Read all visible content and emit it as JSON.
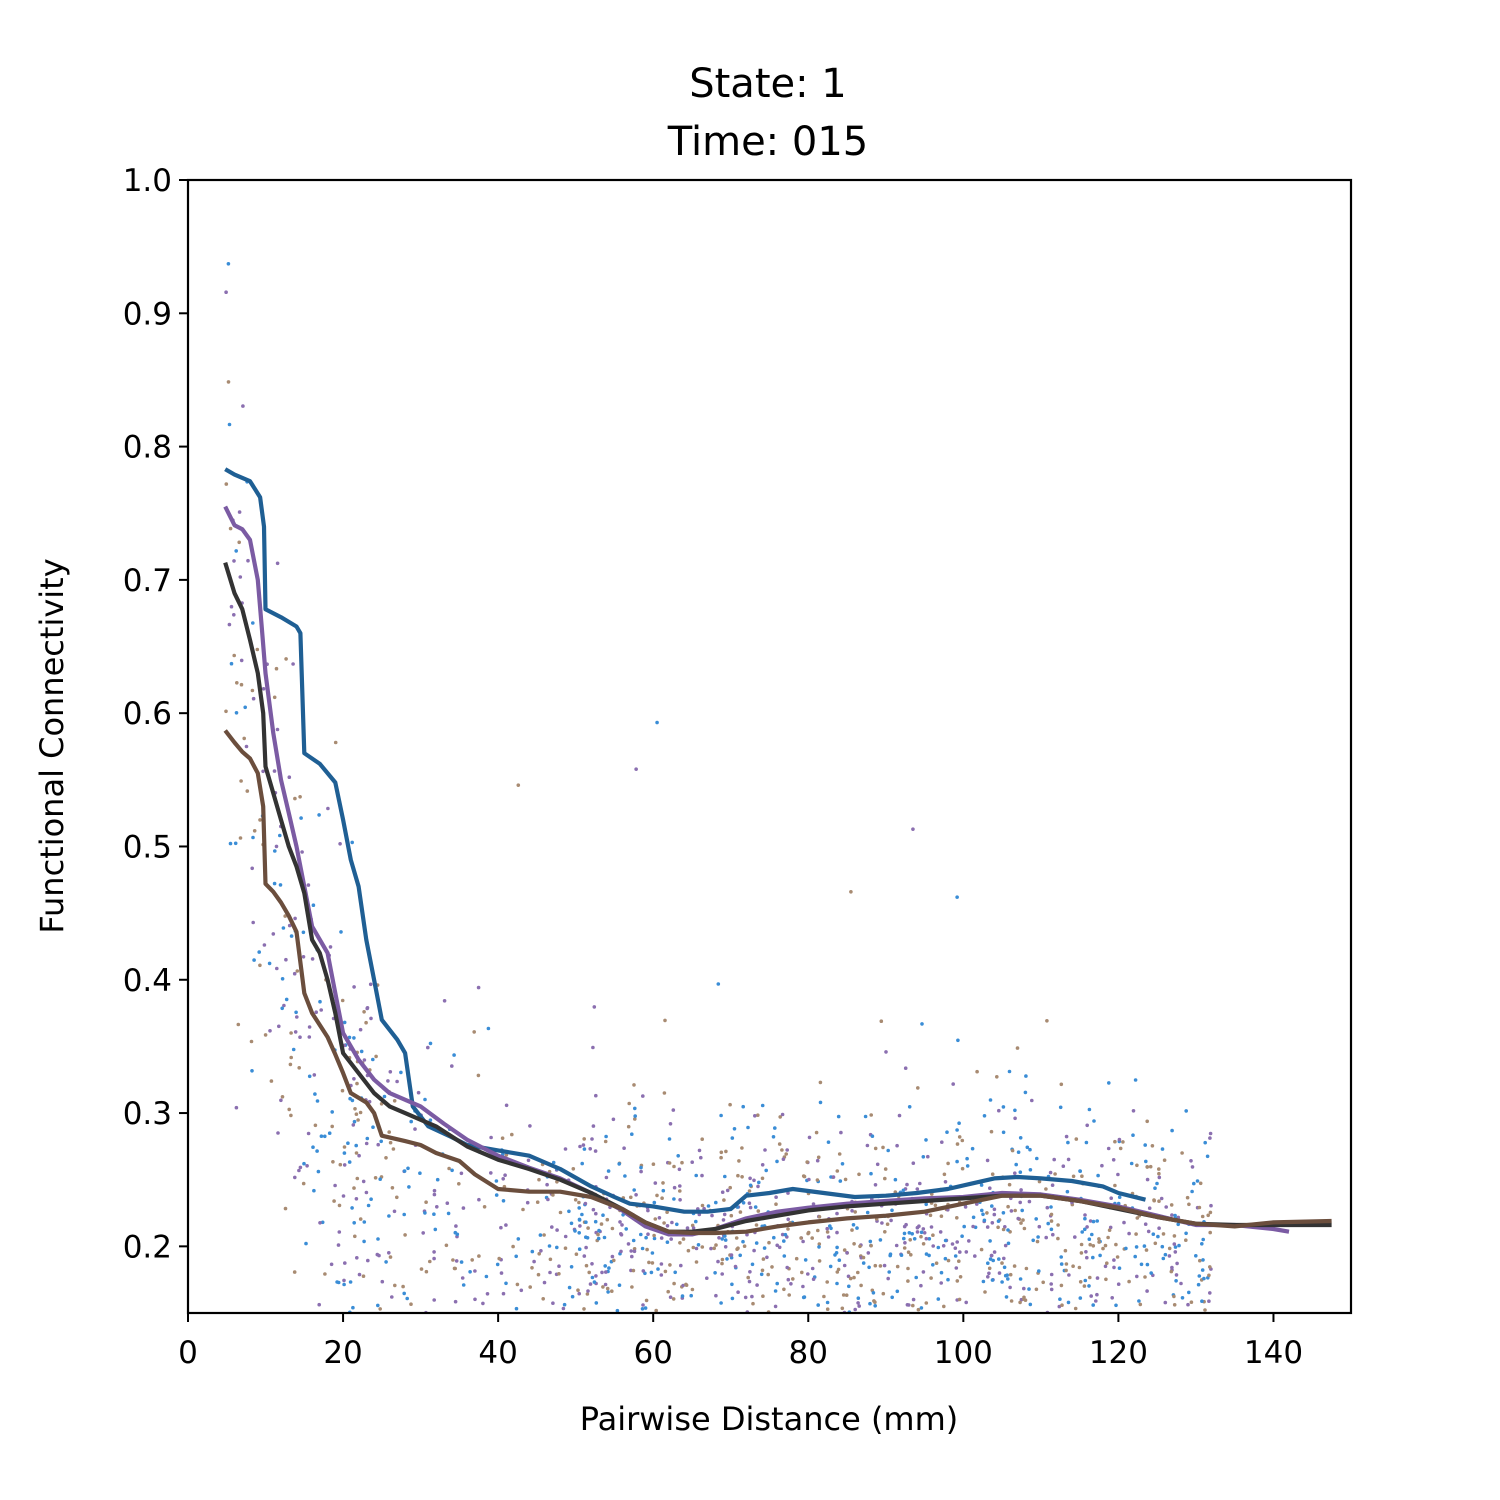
{
  "chart_data": {
    "type": "scatter",
    "title_lines": [
      "State: 1",
      "Time: 015"
    ],
    "xlabel": "Pairwise Distance (mm)",
    "ylabel": "Functional Connectivity",
    "xlim": [
      0,
      150
    ],
    "ylim": [
      0.15,
      1.0
    ],
    "xticks": [
      0,
      20,
      40,
      60,
      80,
      100,
      120,
      140
    ],
    "yticks": [
      0.2,
      0.3,
      0.4,
      0.5,
      0.6,
      0.7,
      0.8,
      0.9,
      1.0
    ],
    "grid": false,
    "legend": "none",
    "scatter_colors": [
      "#3a8dd6",
      "#a88b72",
      "#8b6fb0"
    ],
    "scatter_note_seed": 15,
    "series": [
      {
        "color": "#1f5f94",
        "points": [
          [
            4.8,
            0.783
          ],
          [
            6,
            0.779
          ],
          [
            8,
            0.774
          ],
          [
            9.3,
            0.762
          ],
          [
            9.8,
            0.74
          ],
          [
            10,
            0.678
          ],
          [
            12,
            0.672
          ],
          [
            14,
            0.665
          ],
          [
            14.5,
            0.66
          ],
          [
            15,
            0.57
          ],
          [
            17,
            0.562
          ],
          [
            19,
            0.548
          ],
          [
            20,
            0.52
          ],
          [
            21,
            0.49
          ],
          [
            22,
            0.47
          ],
          [
            23,
            0.43
          ],
          [
            24,
            0.4
          ],
          [
            25,
            0.37
          ],
          [
            27,
            0.355
          ],
          [
            28,
            0.345
          ],
          [
            29,
            0.305
          ],
          [
            31,
            0.29
          ],
          [
            34,
            0.282
          ],
          [
            36,
            0.276
          ],
          [
            40,
            0.272
          ],
          [
            44,
            0.268
          ],
          [
            48,
            0.258
          ],
          [
            52,
            0.245
          ],
          [
            55,
            0.237
          ],
          [
            57,
            0.232
          ],
          [
            60,
            0.23
          ],
          [
            64,
            0.226
          ],
          [
            67,
            0.226
          ],
          [
            70,
            0.228
          ],
          [
            72,
            0.238
          ],
          [
            75,
            0.24
          ],
          [
            78,
            0.243
          ],
          [
            82,
            0.24
          ],
          [
            86,
            0.237
          ],
          [
            90,
            0.238
          ],
          [
            94,
            0.24
          ],
          [
            98,
            0.243
          ],
          [
            101,
            0.247
          ],
          [
            104,
            0.251
          ],
          [
            107,
            0.252
          ],
          [
            110,
            0.251
          ],
          [
            114,
            0.249
          ],
          [
            118,
            0.245
          ],
          [
            120,
            0.24
          ],
          [
            123.5,
            0.235
          ]
        ]
      },
      {
        "color": "#7b5ba3",
        "points": [
          [
            4.8,
            0.755
          ],
          [
            6,
            0.741
          ],
          [
            7,
            0.738
          ],
          [
            8,
            0.73
          ],
          [
            9,
            0.7
          ],
          [
            9.5,
            0.665
          ],
          [
            10,
            0.63
          ],
          [
            11,
            0.585
          ],
          [
            12,
            0.55
          ],
          [
            13,
            0.525
          ],
          [
            14,
            0.5
          ],
          [
            15,
            0.47
          ],
          [
            16,
            0.44
          ],
          [
            18,
            0.42
          ],
          [
            19,
            0.39
          ],
          [
            20,
            0.36
          ],
          [
            22,
            0.34
          ],
          [
            24,
            0.325
          ],
          [
            26,
            0.315
          ],
          [
            30,
            0.305
          ],
          [
            33,
            0.292
          ],
          [
            36,
            0.28
          ],
          [
            40,
            0.268
          ],
          [
            44,
            0.259
          ],
          [
            48,
            0.251
          ],
          [
            52,
            0.24
          ],
          [
            56,
            0.227
          ],
          [
            59,
            0.215
          ],
          [
            62,
            0.209
          ],
          [
            65,
            0.209
          ],
          [
            68,
            0.213
          ],
          [
            72,
            0.221
          ],
          [
            76,
            0.226
          ],
          [
            80,
            0.229
          ],
          [
            85,
            0.232
          ],
          [
            90,
            0.234
          ],
          [
            95,
            0.236
          ],
          [
            100,
            0.237
          ],
          [
            105,
            0.24
          ],
          [
            110,
            0.239
          ],
          [
            115,
            0.235
          ],
          [
            120,
            0.23
          ],
          [
            125,
            0.223
          ],
          [
            130,
            0.216
          ],
          [
            135,
            0.216
          ],
          [
            140,
            0.213
          ],
          [
            142,
            0.211
          ]
        ]
      },
      {
        "color": "#333333",
        "points": [
          [
            4.8,
            0.713
          ],
          [
            6,
            0.69
          ],
          [
            7,
            0.678
          ],
          [
            8,
            0.655
          ],
          [
            9,
            0.63
          ],
          [
            9.7,
            0.6
          ],
          [
            10,
            0.56
          ],
          [
            11,
            0.54
          ],
          [
            12,
            0.52
          ],
          [
            13,
            0.5
          ],
          [
            14,
            0.485
          ],
          [
            15,
            0.465
          ],
          [
            16,
            0.43
          ],
          [
            17,
            0.42
          ],
          [
            18,
            0.4
          ],
          [
            19,
            0.375
          ],
          [
            20,
            0.345
          ],
          [
            22,
            0.33
          ],
          [
            24,
            0.315
          ],
          [
            26,
            0.305
          ],
          [
            28,
            0.3
          ],
          [
            32,
            0.29
          ],
          [
            36,
            0.275
          ],
          [
            40,
            0.265
          ],
          [
            44,
            0.258
          ],
          [
            48,
            0.25
          ],
          [
            52,
            0.24
          ],
          [
            56,
            0.228
          ],
          [
            59,
            0.218
          ],
          [
            62,
            0.211
          ],
          [
            65,
            0.211
          ],
          [
            68,
            0.213
          ],
          [
            72,
            0.219
          ],
          [
            76,
            0.223
          ],
          [
            80,
            0.227
          ],
          [
            85,
            0.23
          ],
          [
            90,
            0.232
          ],
          [
            95,
            0.234
          ],
          [
            100,
            0.236
          ],
          [
            105,
            0.238
          ],
          [
            110,
            0.238
          ],
          [
            115,
            0.234
          ],
          [
            120,
            0.228
          ],
          [
            125,
            0.222
          ],
          [
            130,
            0.217
          ],
          [
            135,
            0.216
          ],
          [
            140,
            0.216
          ],
          [
            147.5,
            0.216
          ]
        ]
      },
      {
        "color": "#6b4e3d",
        "points": [
          [
            4.8,
            0.587
          ],
          [
            6,
            0.578
          ],
          [
            7,
            0.571
          ],
          [
            8,
            0.566
          ],
          [
            9,
            0.555
          ],
          [
            9.7,
            0.53
          ],
          [
            10,
            0.472
          ],
          [
            11,
            0.466
          ],
          [
            12,
            0.458
          ],
          [
            13,
            0.448
          ],
          [
            14,
            0.436
          ],
          [
            15,
            0.39
          ],
          [
            16,
            0.375
          ],
          [
            18,
            0.357
          ],
          [
            19,
            0.344
          ],
          [
            20,
            0.33
          ],
          [
            21,
            0.315
          ],
          [
            23,
            0.308
          ],
          [
            24,
            0.3
          ],
          [
            25,
            0.283
          ],
          [
            28,
            0.279
          ],
          [
            30,
            0.276
          ],
          [
            32,
            0.27
          ],
          [
            35,
            0.264
          ],
          [
            37,
            0.254
          ],
          [
            40,
            0.243
          ],
          [
            44,
            0.241
          ],
          [
            48,
            0.241
          ],
          [
            52,
            0.237
          ],
          [
            56,
            0.228
          ],
          [
            59,
            0.218
          ],
          [
            62,
            0.211
          ],
          [
            65,
            0.21
          ],
          [
            68,
            0.21
          ],
          [
            72,
            0.211
          ],
          [
            76,
            0.215
          ],
          [
            80,
            0.218
          ],
          [
            85,
            0.221
          ],
          [
            90,
            0.223
          ],
          [
            95,
            0.226
          ],
          [
            100,
            0.232
          ],
          [
            105,
            0.238
          ],
          [
            110,
            0.238
          ],
          [
            115,
            0.234
          ],
          [
            120,
            0.229
          ],
          [
            125,
            0.222
          ],
          [
            130,
            0.217
          ],
          [
            135,
            0.215
          ],
          [
            140,
            0.218
          ],
          [
            147.5,
            0.219
          ]
        ]
      }
    ]
  }
}
